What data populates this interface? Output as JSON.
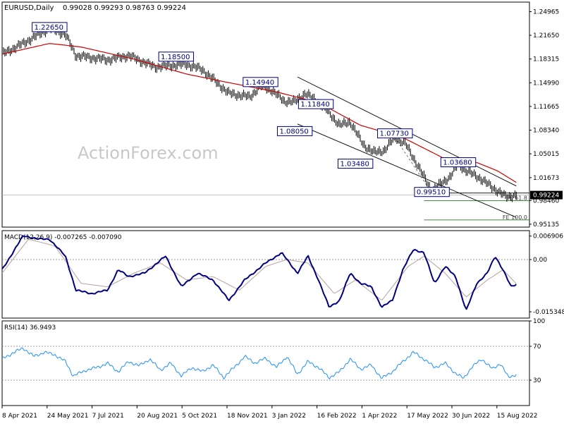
{
  "chart_data": {
    "type": "line",
    "header": {
      "symbol_tf": "EURUSD,Daily",
      "ohlc": "0.99028 0.99293 0.98763 0.99224"
    },
    "watermark": "ActionForex.com",
    "colors": {
      "price": "#000000",
      "ema": "#cc0000",
      "channel": "#000000",
      "macd": "#000080",
      "signal": "#b8a0a0",
      "rsi": "#1e90ff",
      "label_border": "#000080",
      "grid_dash": "#808080"
    },
    "x_axis": {
      "labels": [
        "8 Apr 2021",
        "24 May 2021",
        "7 Jul 2021",
        "20 Aug 2021",
        "5 Oct 2021",
        "18 Nov 2021",
        "3 Jan 2022",
        "16 Feb 2022",
        "1 Apr 2022",
        "17 May 2022",
        "30 Jun 2022",
        "15 Aug 2022"
      ]
    },
    "price_panel": {
      "y_ticks": [
        "1.24965",
        "1.21650",
        "1.18315",
        "1.14990",
        "1.11665",
        "1.08340",
        "1.05015",
        "1.01673",
        "0.98460",
        "0.95135"
      ],
      "ylim": [
        0.9473,
        1.263
      ],
      "current_price": "0.99224",
      "labels": [
        {
          "text": "1.22650",
          "value": 1.2265,
          "time": 0.09
        },
        {
          "text": "1.18500",
          "value": 1.185,
          "time": 0.33
        },
        {
          "text": "1.14940",
          "value": 1.1494,
          "time": 0.49
        },
        {
          "text": "1.08050",
          "value": 1.0805,
          "time": 0.555
        },
        {
          "text": "1.11840",
          "value": 1.1184,
          "time": 0.595
        },
        {
          "text": "1.07730",
          "value": 1.0773,
          "time": 0.745
        },
        {
          "text": "1.03480",
          "value": 1.0348,
          "time": 0.67
        },
        {
          "text": "1.03680",
          "value": 1.0368,
          "time": 0.865
        },
        {
          "text": "0.99510",
          "value": 0.9951,
          "time": 0.815
        }
      ],
      "fe_labels": [
        {
          "text": "FE 61.8",
          "value": 0.9844
        },
        {
          "text": "FE 100.0",
          "value": 0.9573
        }
      ],
      "keypoints": [
        [
          0.0,
          1.19
        ],
        [
          0.04,
          1.205
        ],
        [
          0.09,
          1.2265
        ],
        [
          0.12,
          1.218
        ],
        [
          0.14,
          1.188
        ],
        [
          0.2,
          1.182
        ],
        [
          0.24,
          1.188
        ],
        [
          0.29,
          1.172
        ],
        [
          0.35,
          1.176
        ],
        [
          0.38,
          1.168
        ],
        [
          0.4,
          1.155
        ],
        [
          0.43,
          1.135
        ],
        [
          0.47,
          1.13
        ],
        [
          0.49,
          1.145
        ],
        [
          0.51,
          1.14
        ],
        [
          0.535,
          1.124
        ],
        [
          0.555,
          1.123
        ],
        [
          0.575,
          1.135
        ],
        [
          0.595,
          1.125
        ],
        [
          0.62,
          1.108
        ],
        [
          0.64,
          1.09
        ],
        [
          0.66,
          1.095
        ],
        [
          0.685,
          1.063
        ],
        [
          0.705,
          1.052
        ],
        [
          0.725,
          1.055
        ],
        [
          0.745,
          1.073
        ],
        [
          0.765,
          1.064
        ],
        [
          0.785,
          1.038
        ],
        [
          0.815,
          0.998
        ],
        [
          0.835,
          1.01
        ],
        [
          0.85,
          1.018
        ],
        [
          0.865,
          1.036
        ],
        [
          0.88,
          1.026
        ],
        [
          0.9,
          1.019
        ],
        [
          0.93,
          1.003
        ],
        [
          0.955,
          0.99
        ],
        [
          0.975,
          0.9922
        ]
      ],
      "ema_points": [
        [
          0.0,
          1.19
        ],
        [
          0.09,
          1.205
        ],
        [
          0.15,
          1.2
        ],
        [
          0.25,
          1.183
        ],
        [
          0.35,
          1.162
        ],
        [
          0.43,
          1.15
        ],
        [
          0.52,
          1.137
        ],
        [
          0.6,
          1.122
        ],
        [
          0.68,
          1.09
        ],
        [
          0.76,
          1.073
        ],
        [
          0.84,
          1.043
        ],
        [
          0.9,
          1.038
        ],
        [
          0.94,
          1.026
        ],
        [
          0.975,
          1.01
        ]
      ],
      "channel_upper": [
        [
          0.56,
          1.158
        ],
        [
          0.975,
          1.005
        ]
      ],
      "channel_lower": [
        [
          0.56,
          1.092
        ],
        [
          0.975,
          0.961
        ]
      ],
      "fe_lines": [
        {
          "from": 0.8,
          "to": 1.0,
          "value": 0.9844
        },
        {
          "from": 0.8,
          "to": 1.0,
          "value": 0.9573
        }
      ],
      "support_line": {
        "from": 0.8,
        "to": 1.0,
        "value": 0.9951
      },
      "dashed_swing": [
        [
          0.745,
          1.073
        ],
        [
          0.815,
          0.9951
        ]
      ]
    },
    "macd_panel": {
      "title": "MACD(12,26,9) -0.007265 -0.007090",
      "y_ticks": [
        "0.006906",
        "0.00",
        "-0.015348"
      ],
      "ylim": [
        -0.0172,
        0.0085
      ],
      "zero": 0.0,
      "keypoints": [
        [
          0.0,
          -0.003
        ],
        [
          0.04,
          0.007
        ],
        [
          0.07,
          0.006
        ],
        [
          0.09,
          0.006
        ],
        [
          0.12,
          0.001
        ],
        [
          0.14,
          -0.009
        ],
        [
          0.17,
          -0.01
        ],
        [
          0.2,
          -0.009
        ],
        [
          0.22,
          -0.003
        ],
        [
          0.24,
          -0.005
        ],
        [
          0.27,
          -0.004
        ],
        [
          0.31,
          0.001
        ],
        [
          0.34,
          -0.008
        ],
        [
          0.37,
          -0.004
        ],
        [
          0.4,
          -0.006
        ],
        [
          0.43,
          -0.012
        ],
        [
          0.46,
          -0.006
        ],
        [
          0.5,
          -0.001
        ],
        [
          0.53,
          0.002
        ],
        [
          0.56,
          -0.004
        ],
        [
          0.58,
          0.001
        ],
        [
          0.6,
          -0.006
        ],
        [
          0.62,
          -0.014
        ],
        [
          0.64,
          -0.012
        ],
        [
          0.66,
          -0.004
        ],
        [
          0.68,
          -0.007
        ],
        [
          0.7,
          -0.008
        ],
        [
          0.72,
          -0.014
        ],
        [
          0.74,
          -0.012
        ],
        [
          0.76,
          -0.003
        ],
        [
          0.78,
          0.003
        ],
        [
          0.8,
          0.002
        ],
        [
          0.82,
          -0.007
        ],
        [
          0.84,
          -0.002
        ],
        [
          0.86,
          -0.005
        ],
        [
          0.88,
          -0.015
        ],
        [
          0.9,
          -0.007
        ],
        [
          0.92,
          -0.004
        ],
        [
          0.935,
          0.001
        ],
        [
          0.95,
          -0.003
        ],
        [
          0.965,
          -0.008
        ],
        [
          0.975,
          -0.0073
        ]
      ],
      "signal_keypoints": [
        [
          0.0,
          -0.004
        ],
        [
          0.05,
          0.006
        ],
        [
          0.1,
          0.004
        ],
        [
          0.15,
          -0.007
        ],
        [
          0.2,
          -0.008
        ],
        [
          0.25,
          -0.004
        ],
        [
          0.3,
          -0.001
        ],
        [
          0.35,
          -0.006
        ],
        [
          0.4,
          -0.005
        ],
        [
          0.45,
          -0.009
        ],
        [
          0.5,
          -0.002
        ],
        [
          0.54,
          0.0
        ],
        [
          0.58,
          -0.001
        ],
        [
          0.63,
          -0.01
        ],
        [
          0.67,
          -0.006
        ],
        [
          0.72,
          -0.012
        ],
        [
          0.77,
          -0.002
        ],
        [
          0.8,
          0.001
        ],
        [
          0.84,
          -0.004
        ],
        [
          0.88,
          -0.011
        ],
        [
          0.92,
          -0.006
        ],
        [
          0.95,
          -0.003
        ],
        [
          0.975,
          -0.0071
        ]
      ]
    },
    "rsi_panel": {
      "title": "RSI(14) 36.9493",
      "y_ticks": [
        "100",
        "70",
        "30"
      ],
      "ylim": [
        0,
        100
      ],
      "levels": [
        70,
        30
      ],
      "keypoints": [
        [
          0.0,
          55
        ],
        [
          0.02,
          62
        ],
        [
          0.04,
          68
        ],
        [
          0.06,
          58
        ],
        [
          0.08,
          63
        ],
        [
          0.1,
          60
        ],
        [
          0.12,
          52
        ],
        [
          0.135,
          35
        ],
        [
          0.16,
          42
        ],
        [
          0.18,
          45
        ],
        [
          0.2,
          50
        ],
        [
          0.22,
          40
        ],
        [
          0.24,
          52
        ],
        [
          0.26,
          47
        ],
        [
          0.28,
          55
        ],
        [
          0.3,
          42
        ],
        [
          0.32,
          50
        ],
        [
          0.34,
          35
        ],
        [
          0.36,
          45
        ],
        [
          0.38,
          40
        ],
        [
          0.4,
          48
        ],
        [
          0.42,
          33
        ],
        [
          0.44,
          45
        ],
        [
          0.46,
          58
        ],
        [
          0.48,
          50
        ],
        [
          0.5,
          56
        ],
        [
          0.52,
          45
        ],
        [
          0.54,
          58
        ],
        [
          0.56,
          37
        ],
        [
          0.58,
          52
        ],
        [
          0.6,
          45
        ],
        [
          0.62,
          33
        ],
        [
          0.64,
          40
        ],
        [
          0.66,
          55
        ],
        [
          0.68,
          43
        ],
        [
          0.7,
          48
        ],
        [
          0.72,
          32
        ],
        [
          0.74,
          40
        ],
        [
          0.76,
          52
        ],
        [
          0.78,
          63
        ],
        [
          0.8,
          55
        ],
        [
          0.82,
          45
        ],
        [
          0.84,
          50
        ],
        [
          0.86,
          38
        ],
        [
          0.875,
          32
        ],
        [
          0.89,
          45
        ],
        [
          0.91,
          55
        ],
        [
          0.93,
          43
        ],
        [
          0.945,
          50
        ],
        [
          0.96,
          33
        ],
        [
          0.975,
          37
        ]
      ]
    }
  }
}
